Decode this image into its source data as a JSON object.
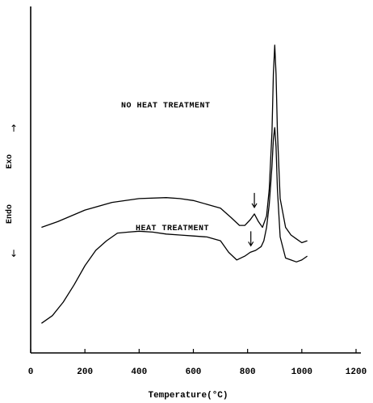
{
  "chart_data": {
    "type": "line",
    "xlabel": "Temperature(°C)",
    "ylabel_exo": "Exo",
    "ylabel_endo": "Endo",
    "xlim": [
      0,
      1200
    ],
    "xticks": [
      0,
      200,
      400,
      600,
      800,
      1000,
      1200
    ],
    "grid": false,
    "annotations": [
      "NO HEAT TREATMENT",
      "HEAT TREATMENT"
    ],
    "series": [
      {
        "name": "NO HEAT TREATMENT",
        "x": [
          40,
          100,
          200,
          300,
          400,
          500,
          550,
          600,
          650,
          700,
          740,
          770,
          790,
          810,
          825,
          840,
          855,
          870,
          880,
          890,
          895,
          900,
          905,
          910,
          920,
          940,
          960,
          980,
          1000,
          1020
        ],
        "y": [
          0.6,
          0.63,
          0.69,
          0.73,
          0.75,
          0.755,
          0.75,
          0.74,
          0.72,
          0.7,
          0.65,
          0.61,
          0.61,
          0.64,
          0.67,
          0.63,
          0.6,
          0.66,
          0.8,
          1.1,
          1.4,
          1.55,
          1.4,
          1.1,
          0.75,
          0.6,
          0.56,
          0.54,
          0.52,
          0.53
        ]
      },
      {
        "name": "HEAT TREATMENT",
        "x": [
          40,
          80,
          120,
          160,
          200,
          240,
          280,
          320,
          360,
          400,
          450,
          500,
          550,
          600,
          650,
          700,
          730,
          760,
          790,
          810,
          830,
          850,
          860,
          870,
          880,
          890,
          895,
          900,
          905,
          910,
          920,
          940,
          960,
          980,
          1000,
          1020
        ],
        "y": [
          0.1,
          0.14,
          0.21,
          0.3,
          0.4,
          0.48,
          0.53,
          0.57,
          0.575,
          0.58,
          0.575,
          0.565,
          0.56,
          0.555,
          0.55,
          0.53,
          0.47,
          0.43,
          0.45,
          0.47,
          0.48,
          0.5,
          0.53,
          0.6,
          0.72,
          0.92,
          1.06,
          1.12,
          1.02,
          0.8,
          0.55,
          0.44,
          0.43,
          0.42,
          0.43,
          0.45
        ]
      }
    ],
    "arrow_x": [
      825,
      812
    ]
  }
}
